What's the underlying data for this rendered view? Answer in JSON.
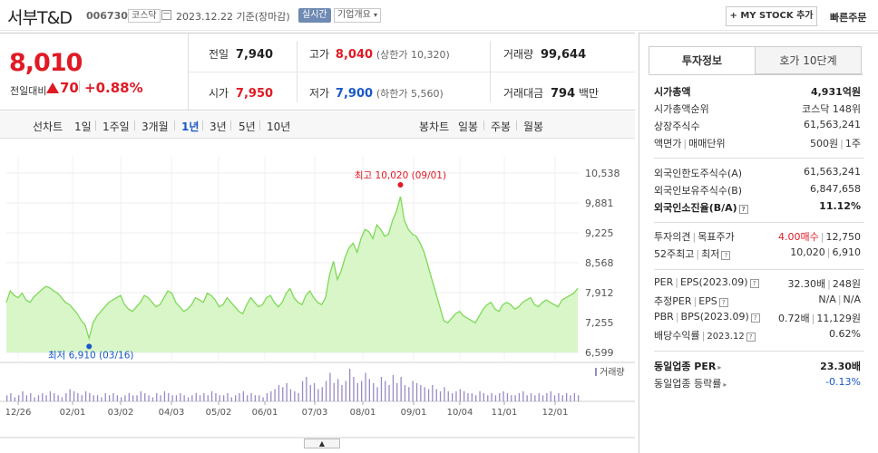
{
  "header": {
    "company_name": "서부T&D",
    "code": "006730",
    "market": "코스닥",
    "date_text": "2023.12.22  기준(장마감)",
    "realtime": "실시간",
    "overview": "기업개요",
    "my_stock": "+ MY STOCK 추가",
    "quick_order": "빠른주문"
  },
  "price": {
    "current": "8,010",
    "change_label": "전일대비",
    "change_abs": "70",
    "change_pct": "+0.88%"
  },
  "quote": {
    "prev_label": "전일",
    "prev_value": "7,940",
    "high_label": "고가",
    "high_value": "8,040",
    "upper_limit": "(상한가 10,320)",
    "volume_label": "거래량",
    "volume_value": "99,644",
    "open_label": "시가",
    "open_value": "7,950",
    "low_label": "저가",
    "low_value": "7,900",
    "lower_limit": "(하한가 5,560)",
    "amount_label": "거래대금",
    "amount_value": "794",
    "amount_unit": "백만"
  },
  "period_tabs": {
    "line_label": "선차트",
    "items": [
      "1일",
      "1주일",
      "3개월",
      "1년",
      "3년",
      "5년",
      "10년"
    ],
    "selected": "1년",
    "candle_label": "봉차트",
    "candle_items": [
      "일봉",
      "주봉",
      "월봉"
    ]
  },
  "chart_data": {
    "type": "area",
    "y_ticks": [
      "10,538",
      "9,881",
      "9,225",
      "8,568",
      "7,912",
      "7,255",
      "6,599"
    ],
    "ylim": [
      6599,
      10538
    ],
    "x_ticks": [
      "12/26",
      "02/01",
      "03/02",
      "04/03",
      "05/02",
      "06/01",
      "07/03",
      "08/01",
      "09/01",
      "10/04",
      "11/01",
      "12/01"
    ],
    "high_annotation": "최고 10,020 (09/01)",
    "low_annotation": "최저 6,910 (03/16)",
    "high_value": 10020,
    "low_value": 6910,
    "volume_label": "거래량",
    "accent": "#7ed957",
    "fill": "#d8f6c8",
    "values": [
      7700,
      7950,
      7850,
      7800,
      7900,
      7750,
      7700,
      7820,
      7900,
      7980,
      8050,
      8020,
      7950,
      7900,
      7800,
      7700,
      7650,
      7550,
      7450,
      7300,
      7200,
      6910,
      7250,
      7400,
      7500,
      7600,
      7700,
      7750,
      7800,
      7850,
      7650,
      7550,
      7500,
      7600,
      7700,
      7850,
      7800,
      7700,
      7600,
      7650,
      7800,
      7950,
      7900,
      7700,
      7600,
      7500,
      7550,
      7650,
      7800,
      7750,
      7700,
      7900,
      7850,
      7750,
      7600,
      7650,
      7800,
      7700,
      7600,
      7500,
      7450,
      7650,
      7800,
      7700,
      7600,
      7650,
      7800,
      7850,
      7700,
      7600,
      7700,
      7900,
      8000,
      7800,
      7700,
      7650,
      7850,
      7950,
      7800,
      7700,
      7650,
      7800,
      8300,
      8600,
      8200,
      8400,
      8700,
      8900,
      9000,
      8800,
      9100,
      9300,
      9250,
      9100,
      9400,
      9300,
      9150,
      9200,
      9500,
      9700,
      10020,
      9500,
      9300,
      9200,
      9150,
      9000,
      8800,
      8500,
      8200,
      7900,
      7600,
      7300,
      7250,
      7350,
      7450,
      7500,
      7400,
      7350,
      7300,
      7250,
      7400,
      7550,
      7650,
      7700,
      7550,
      7500,
      7650,
      7700,
      7650,
      7550,
      7600,
      7700,
      7750,
      7800,
      7650,
      7600,
      7700,
      7750,
      7700,
      7650,
      7600,
      7750,
      7800,
      7850,
      7900,
      8010
    ],
    "volumes": [
      3,
      4,
      2,
      3,
      5,
      3,
      4,
      2,
      3,
      4,
      3,
      5,
      4,
      3,
      2,
      4,
      6,
      5,
      4,
      3,
      5,
      4,
      3,
      3,
      2,
      4,
      3,
      4,
      3,
      2,
      3,
      4,
      3,
      3,
      5,
      4,
      3,
      2,
      4,
      3,
      5,
      4,
      3,
      3,
      4,
      3,
      2,
      3,
      4,
      3,
      4,
      3,
      5,
      4,
      3,
      3,
      4,
      2,
      3,
      4,
      5,
      3,
      4,
      3,
      3,
      2,
      4,
      5,
      6,
      8,
      7,
      9,
      6,
      5,
      4,
      10,
      12,
      8,
      9,
      6,
      7,
      10,
      14,
      9,
      11,
      8,
      10,
      16,
      12,
      9,
      10,
      14,
      11,
      9,
      7,
      12,
      10,
      8,
      13,
      9,
      12,
      8,
      7,
      10,
      9,
      8,
      7,
      6,
      8,
      6,
      5,
      7,
      5,
      4,
      5,
      6,
      5,
      4,
      4,
      3,
      5,
      4,
      3,
      4,
      3,
      4,
      5,
      4,
      3,
      3,
      4,
      5,
      3,
      4,
      3,
      4,
      3,
      4,
      5,
      3,
      4,
      3,
      4,
      3,
      4,
      3
    ]
  },
  "right_panel": {
    "tabs": [
      "투자정보",
      "호가 10단계"
    ],
    "market_cap_label": "시가총액",
    "market_cap_value": "4,931억원",
    "market_cap_rank_label": "시가총액순위",
    "market_cap_rank_value": "코스닥 148위",
    "shares_label": "상장주식수",
    "shares_value": "61,563,241",
    "par_label": "액면가",
    "unit_label": "매매단위",
    "par_value": "500원",
    "unit_value": "1주",
    "foreign_limit_label": "외국인한도주식수(A)",
    "foreign_limit_value": "61,563,241",
    "foreign_hold_label": "외국인보유주식수(B)",
    "foreign_hold_value": "6,847,658",
    "foreign_ratio_label": "외국인소진율(B/A)",
    "foreign_ratio_value": "11.12%",
    "opinion_label": "투자의견",
    "target_label": "목표주가",
    "opinion_value": "4.00매수",
    "target_value": "12,750",
    "w52_high_label": "52주최고",
    "w52_low_label": "최저",
    "w52_high_value": "10,020",
    "w52_low_value": "6,910",
    "per_label": "PER",
    "eps_label": "EPS(2023.09)",
    "per_value": "32.30배",
    "eps_value": "248원",
    "est_per_label": "추정PER",
    "est_eps_label": "EPS",
    "est_per_value": "N/A",
    "est_eps_value": "N/A",
    "pbr_label": "PBR",
    "bps_label": "BPS(2023.09)",
    "pbr_value": "0.72배",
    "bps_value": "11,129원",
    "div_label": "배당수익률",
    "div_date": "2023.12",
    "div_value": "0.62%",
    "sector_per_label": "동일업종 PER",
    "sector_per_value": "23.30배",
    "sector_chg_label": "동일업종 등락률",
    "sector_chg_value": "-0.13%"
  }
}
